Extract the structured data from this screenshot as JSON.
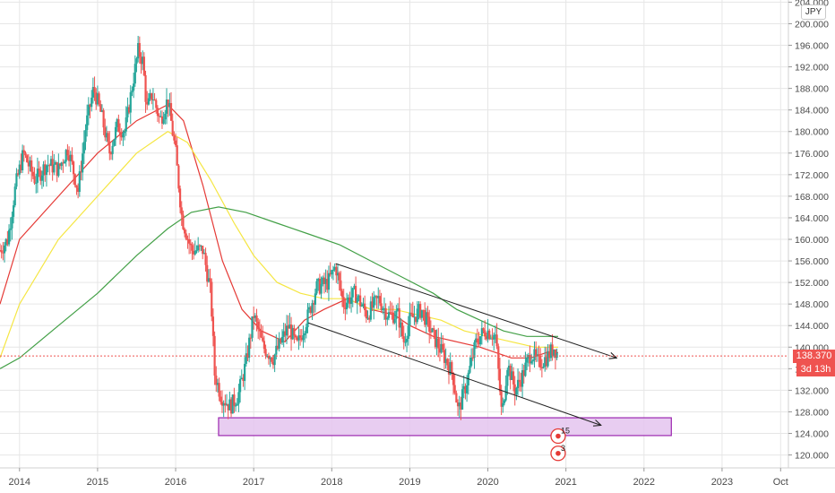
{
  "chart_data": {
    "type": "candlestick",
    "currency": "JPY",
    "y_axis": {
      "ylim": [
        117.6,
        204.4
      ],
      "ticks": [
        "120.000",
        "124.000",
        "128.000",
        "132.000",
        "136.000",
        "140.000",
        "144.000",
        "148.000",
        "152.000",
        "156.000",
        "160.000",
        "164.000",
        "168.000",
        "172.000",
        "176.000",
        "180.000",
        "184.000",
        "188.000",
        "192.000",
        "196.000",
        "200.000",
        "204.000"
      ],
      "tick_values": [
        120,
        124,
        128,
        132,
        136,
        140,
        144,
        148,
        152,
        156,
        160,
        164,
        168,
        172,
        176,
        180,
        184,
        188,
        192,
        196,
        200,
        204
      ]
    },
    "x_axis": {
      "ticks": [
        "2014",
        "2015",
        "2016",
        "2017",
        "2018",
        "2019",
        "2020",
        "2021",
        "2022",
        "2023",
        "Oct"
      ],
      "tick_values": [
        2014,
        2015,
        2016,
        2017,
        2018,
        2019,
        2020,
        2021,
        2022,
        2023,
        2023.75
      ],
      "xlim": [
        2013.75,
        2023.85
      ]
    },
    "current_price": "138.370",
    "countdown": "3d 13h",
    "price_series": [
      [
        2013.75,
        158
      ],
      [
        2013.85,
        160
      ],
      [
        2013.95,
        170
      ],
      [
        2014.05,
        176
      ],
      [
        2014.2,
        171
      ],
      [
        2014.35,
        174
      ],
      [
        2014.5,
        173
      ],
      [
        2014.62,
        177
      ],
      [
        2014.75,
        169
      ],
      [
        2014.85,
        181
      ],
      [
        2014.95,
        188
      ],
      [
        2015.05,
        183
      ],
      [
        2015.15,
        176
      ],
      [
        2015.25,
        181
      ],
      [
        2015.35,
        180
      ],
      [
        2015.45,
        189
      ],
      [
        2015.52,
        195
      ],
      [
        2015.58,
        193
      ],
      [
        2015.63,
        184
      ],
      [
        2015.7,
        187
      ],
      [
        2015.8,
        182
      ],
      [
        2015.9,
        186
      ],
      [
        2016.0,
        176
      ],
      [
        2016.08,
        164
      ],
      [
        2016.2,
        158
      ],
      [
        2016.35,
        158
      ],
      [
        2016.45,
        150
      ],
      [
        2016.5,
        135
      ],
      [
        2016.58,
        131
      ],
      [
        2016.7,
        129
      ],
      [
        2016.8,
        131
      ],
      [
        2016.9,
        137
      ],
      [
        2017.0,
        146
      ],
      [
        2017.12,
        140
      ],
      [
        2017.25,
        138
      ],
      [
        2017.35,
        141
      ],
      [
        2017.45,
        144
      ],
      [
        2017.55,
        140
      ],
      [
        2017.7,
        146
      ],
      [
        2017.8,
        151
      ],
      [
        2017.95,
        152
      ],
      [
        2018.05,
        155
      ],
      [
        2018.15,
        148
      ],
      [
        2018.3,
        150
      ],
      [
        2018.45,
        146
      ],
      [
        2018.6,
        149
      ],
      [
        2018.72,
        146
      ],
      [
        2018.85,
        146
      ],
      [
        2018.92,
        141
      ],
      [
        2019.0,
        145
      ],
      [
        2019.15,
        147
      ],
      [
        2019.3,
        142
      ],
      [
        2019.45,
        138
      ],
      [
        2019.55,
        135
      ],
      [
        2019.62,
        128
      ],
      [
        2019.72,
        133
      ],
      [
        2019.85,
        141
      ],
      [
        2019.95,
        143
      ],
      [
        2020.0,
        143
      ],
      [
        2020.1,
        142
      ],
      [
        2020.18,
        127
      ],
      [
        2020.25,
        137
      ],
      [
        2020.35,
        132
      ],
      [
        2020.45,
        135
      ],
      [
        2020.55,
        139
      ],
      [
        2020.65,
        137
      ],
      [
        2020.75,
        138
      ],
      [
        2020.85,
        140
      ],
      [
        2020.9,
        138.37
      ]
    ],
    "moving_averages": [
      {
        "color": "#e53935",
        "points": [
          [
            2013.75,
            148
          ],
          [
            2014.0,
            160
          ],
          [
            2014.5,
            168
          ],
          [
            2015.0,
            176
          ],
          [
            2015.5,
            182
          ],
          [
            2015.9,
            185
          ],
          [
            2016.1,
            182
          ],
          [
            2016.35,
            170
          ],
          [
            2016.6,
            156
          ],
          [
            2016.85,
            147
          ],
          [
            2017.1,
            143
          ],
          [
            2017.4,
            141
          ],
          [
            2017.65,
            145
          ],
          [
            2017.9,
            147
          ],
          [
            2018.2,
            149
          ],
          [
            2018.5,
            147
          ],
          [
            2018.8,
            146
          ],
          [
            2019.0,
            144
          ],
          [
            2019.3,
            142
          ],
          [
            2019.6,
            141
          ],
          [
            2019.9,
            140
          ],
          [
            2020.1,
            139
          ],
          [
            2020.3,
            138
          ],
          [
            2020.55,
            138
          ],
          [
            2020.75,
            139
          ],
          [
            2020.9,
            139
          ]
        ]
      },
      {
        "color": "#f5e642",
        "points": [
          [
            2013.75,
            138
          ],
          [
            2014.0,
            148
          ],
          [
            2014.5,
            160
          ],
          [
            2015.0,
            168
          ],
          [
            2015.5,
            176
          ],
          [
            2015.9,
            180
          ],
          [
            2016.15,
            178
          ],
          [
            2016.45,
            171
          ],
          [
            2016.75,
            163
          ],
          [
            2017.0,
            157
          ],
          [
            2017.3,
            152
          ],
          [
            2017.6,
            150
          ],
          [
            2017.9,
            149
          ],
          [
            2018.2,
            149
          ],
          [
            2018.5,
            147
          ],
          [
            2018.8,
            147
          ],
          [
            2019.1,
            146
          ],
          [
            2019.4,
            145
          ],
          [
            2019.7,
            143
          ],
          [
            2020.0,
            142
          ],
          [
            2020.3,
            141
          ],
          [
            2020.6,
            140
          ],
          [
            2020.9,
            140
          ]
        ]
      },
      {
        "color": "#43a047",
        "points": [
          [
            2013.75,
            136
          ],
          [
            2014.0,
            138
          ],
          [
            2014.5,
            144
          ],
          [
            2015.0,
            150
          ],
          [
            2015.5,
            157
          ],
          [
            2015.9,
            162
          ],
          [
            2016.2,
            165
          ],
          [
            2016.55,
            166
          ],
          [
            2016.9,
            165
          ],
          [
            2017.3,
            163
          ],
          [
            2017.7,
            161
          ],
          [
            2018.1,
            159
          ],
          [
            2018.5,
            156
          ],
          [
            2018.9,
            153
          ],
          [
            2019.3,
            150
          ],
          [
            2019.6,
            147
          ],
          [
            2019.9,
            145
          ],
          [
            2020.2,
            143
          ],
          [
            2020.5,
            142
          ],
          [
            2020.9,
            142
          ]
        ]
      }
    ],
    "trend_lines": [
      {
        "color": "#222222",
        "from": [
          2018.05,
          155.5
        ],
        "to": [
          2021.65,
          138.0
        ],
        "arrow": true
      },
      {
        "color": "#222222",
        "from": [
          2017.7,
          144.5
        ],
        "to": [
          2021.45,
          125.5
        ],
        "arrow": true
      }
    ],
    "support_zone": {
      "x": [
        2016.55,
        2022.35
      ],
      "y": [
        123.6,
        126.9
      ],
      "fill": "#e4c4ef",
      "stroke": "#9c27b0"
    },
    "markers": [
      {
        "label": "15",
        "x": 2020.9,
        "y": 123.5
      },
      {
        "label": "3",
        "x": 2020.9,
        "y": 120.3
      }
    ],
    "colors": {
      "up": "#26a69a",
      "down": "#ef5350",
      "grid": "#e6e6e6",
      "price_line": "#ef5350"
    },
    "grid": true
  }
}
